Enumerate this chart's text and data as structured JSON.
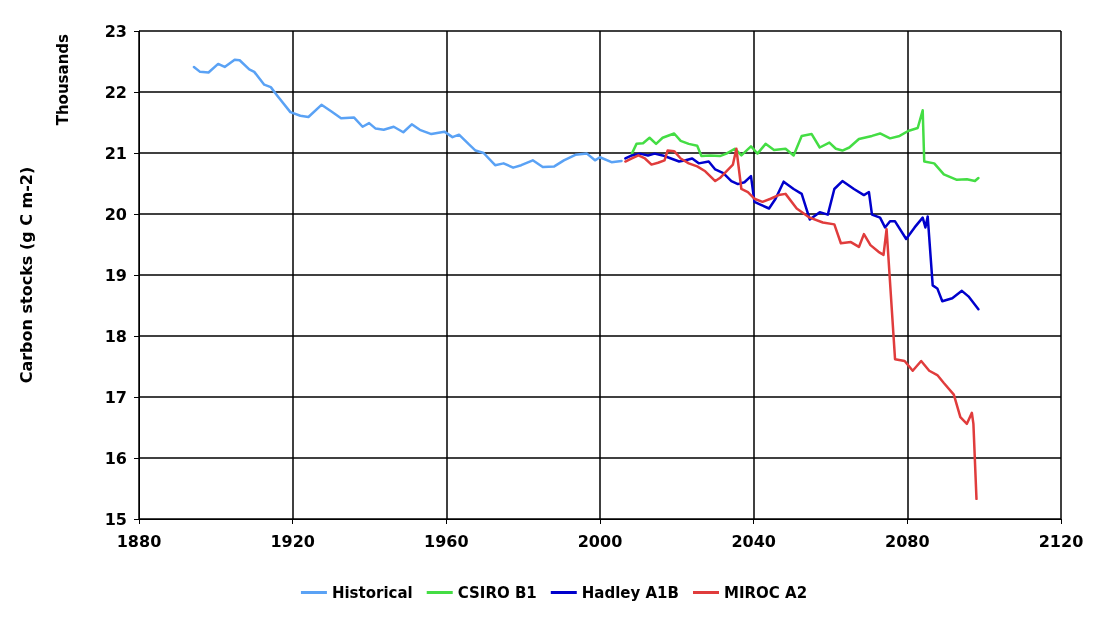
{
  "chart_data": {
    "type": "line",
    "ylabel": "Carbon stocks (g C m-2)",
    "annotations": [
      "Thousands"
    ],
    "xlim": [
      1880,
      2120
    ],
    "xticks": [
      1880,
      1920,
      1960,
      2000,
      2040,
      2080,
      2120
    ],
    "ylim": [
      15,
      23
    ],
    "yticks": [
      15,
      16,
      17,
      18,
      19,
      20,
      21,
      22,
      23
    ],
    "grid": true,
    "legend": "bottom",
    "marker": "none",
    "line_style": "solid",
    "series": [
      {
        "name": "Historical",
        "color": "#5aa2f5",
        "x": [
          1894.3,
          1895.9,
          1898.1,
          1900.6,
          1902.3,
          1904.9,
          1906.2,
          1908.7,
          1910,
          1912.6,
          1914.3,
          1916,
          1919.4,
          1922,
          1924.1,
          1927.5,
          1930.1,
          1932.6,
          1936,
          1938.2,
          1939.9,
          1941.6,
          1943.7,
          1946.3,
          1948.8,
          1951,
          1953.1,
          1956.1,
          1959.5,
          1961.6,
          1963.3,
          1965.9,
          1967.6,
          1969.7,
          1972.7,
          1974.9,
          1977.4,
          1979.5,
          1982.5,
          1985.1,
          1988.1,
          1990.6,
          1993.6,
          1996.6,
          1998.7,
          2000,
          2003,
          2005.6
        ],
        "values": [
          22.41,
          22.33,
          22.32,
          22.46,
          22.41,
          22.53,
          22.52,
          22.37,
          22.33,
          22.12,
          22.08,
          21.94,
          21.67,
          21.61,
          21.59,
          21.79,
          21.68,
          21.57,
          21.58,
          21.43,
          21.49,
          21.4,
          21.38,
          21.43,
          21.34,
          21.47,
          21.38,
          21.31,
          21.35,
          21.26,
          21.3,
          21.14,
          21.04,
          21,
          20.8,
          20.83,
          20.76,
          20.8,
          20.88,
          20.77,
          20.78,
          20.88,
          20.97,
          20.99,
          20.88,
          20.93,
          20.85,
          20.87
        ]
      },
      {
        "name": "CSIRO B1",
        "color": "#44dd44",
        "x": [
          2008.3,
          2009.5,
          2011.2,
          2012.9,
          2014.6,
          2016.3,
          2019.3,
          2021,
          2023.1,
          2025.3,
          2026.4,
          2028.7,
          2031.2,
          2032.9,
          2035.1,
          2036.8,
          2039.3,
          2041,
          2043.1,
          2045.3,
          2048.3,
          2050.4,
          2052.5,
          2055.1,
          2057.2,
          2059.7,
          2061.4,
          2063.1,
          2064.9,
          2067.4,
          2070.8,
          2072.9,
          2075.5,
          2078,
          2080.2,
          2082.7,
          2084,
          2084.4,
          2087,
          2089.5,
          2092.9,
          2095.5,
          2097.6,
          2098.5
        ],
        "values": [
          20.99,
          21.15,
          21.16,
          21.25,
          21.15,
          21.25,
          21.32,
          21.2,
          21.15,
          21.12,
          20.95,
          20.96,
          20.95,
          20.99,
          21.07,
          20.96,
          21.11,
          20.99,
          21.15,
          21.05,
          21.07,
          20.96,
          21.28,
          21.31,
          21.09,
          21.17,
          21.07,
          21.04,
          21.09,
          21.23,
          21.28,
          21.32,
          21.24,
          21.28,
          21.36,
          21.41,
          21.7,
          20.86,
          20.83,
          20.65,
          20.56,
          20.57,
          20.54,
          20.59
        ]
      },
      {
        "name": "Hadley A1B",
        "color": "#0000cc",
        "x": [
          2006.6,
          2008.3,
          2010.4,
          2012.5,
          2014.2,
          2016.3,
          2018.5,
          2020.6,
          2022.3,
          2024,
          2025.7,
          2028.3,
          2030,
          2032.1,
          2034.2,
          2035.9,
          2037.6,
          2039.3,
          2040.2,
          2041.9,
          2044,
          2045.7,
          2047.8,
          2050.4,
          2052.5,
          2054.6,
          2057.2,
          2059.3,
          2061,
          2063.1,
          2066.1,
          2068.7,
          2070,
          2070.8,
          2072.9,
          2074.2,
          2075.5,
          2076.8,
          2079.7,
          2081.9,
          2084,
          2084.7,
          2085.3,
          2086.6,
          2087.8,
          2089.1,
          2091.7,
          2094.2,
          2095.9,
          2098.5
        ],
        "values": [
          20.91,
          20.96,
          20.99,
          20.96,
          20.99,
          20.96,
          20.91,
          20.86,
          20.88,
          20.91,
          20.83,
          20.86,
          20.73,
          20.67,
          20.54,
          20.49,
          20.52,
          20.62,
          20.2,
          20.15,
          20.09,
          20.25,
          20.53,
          20.41,
          20.33,
          19.91,
          20.03,
          19.99,
          20.41,
          20.54,
          20.41,
          20.31,
          20.36,
          19.99,
          19.94,
          19.78,
          19.88,
          19.88,
          19.59,
          19.78,
          19.94,
          19.78,
          19.96,
          18.83,
          18.78,
          18.57,
          18.62,
          18.74,
          18.65,
          18.44
        ]
      },
      {
        "name": "MIROC A2",
        "color": "#e03c3c",
        "x": [
          2006.6,
          2008.3,
          2010,
          2011.7,
          2013.4,
          2015.1,
          2016.8,
          2017.6,
          2019.3,
          2021,
          2023.1,
          2025.3,
          2027.4,
          2030,
          2031.2,
          2032.9,
          2034.6,
          2035.5,
          2036.8,
          2038.5,
          2040.2,
          2042.3,
          2044.4,
          2046.5,
          2048.3,
          2051.2,
          2054.6,
          2058,
          2061,
          2062.7,
          2065.3,
          2067.4,
          2068.7,
          2070.4,
          2072.5,
          2073.8,
          2074.6,
          2076.8,
          2079.3,
          2081.4,
          2083.6,
          2085.7,
          2087.8,
          2089.5,
          2092.1,
          2093.8,
          2095.5,
          2096.8,
          2097.2,
          2098
        ],
        "values": [
          20.86,
          20.91,
          20.96,
          20.91,
          20.81,
          20.84,
          20.88,
          21.04,
          21.03,
          20.91,
          20.83,
          20.78,
          20.7,
          20.54,
          20.59,
          20.7,
          20.81,
          21.07,
          20.41,
          20.36,
          20.25,
          20.2,
          20.25,
          20.31,
          20.33,
          20.09,
          19.94,
          19.86,
          19.83,
          19.52,
          19.54,
          19.46,
          19.67,
          19.49,
          19.38,
          19.33,
          19.75,
          17.62,
          17.59,
          17.43,
          17.59,
          17.43,
          17.36,
          17.23,
          17.04,
          16.67,
          16.56,
          16.74,
          16.56,
          15.33
        ]
      }
    ]
  }
}
